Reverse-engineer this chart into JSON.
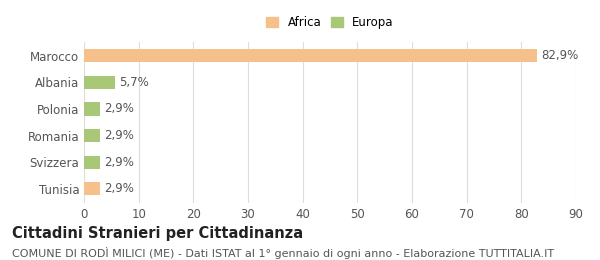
{
  "categories": [
    "Tunisia",
    "Svizzera",
    "Romania",
    "Polonia",
    "Albania",
    "Marocco"
  ],
  "values": [
    2.9,
    2.9,
    2.9,
    2.9,
    5.7,
    82.9
  ],
  "colors": [
    "#f5c08a",
    "#a8c878",
    "#a8c878",
    "#a8c878",
    "#a8c878",
    "#f5c08a"
  ],
  "labels": [
    "2,9%",
    "2,9%",
    "2,9%",
    "2,9%",
    "5,7%",
    "82,9%"
  ],
  "legend_items": [
    {
      "label": "Africa",
      "color": "#f5c08a"
    },
    {
      "label": "Europa",
      "color": "#a8c878"
    }
  ],
  "xlim": [
    0,
    90
  ],
  "xticks": [
    0,
    10,
    20,
    30,
    40,
    50,
    60,
    70,
    80,
    90
  ],
  "title": "Cittadini Stranieri per Cittadinanza",
  "subtitle": "COMUNE DI RODÌ MILICI (ME) - Dati ISTAT al 1° gennaio di ogni anno - Elaborazione TUTTITALIA.IT",
  "title_fontsize": 10.5,
  "subtitle_fontsize": 8,
  "bar_height": 0.5,
  "background_color": "#ffffff",
  "grid_color": "#dddddd",
  "label_fontsize": 8.5,
  "tick_fontsize": 8.5,
  "ytick_fontsize": 8.5
}
